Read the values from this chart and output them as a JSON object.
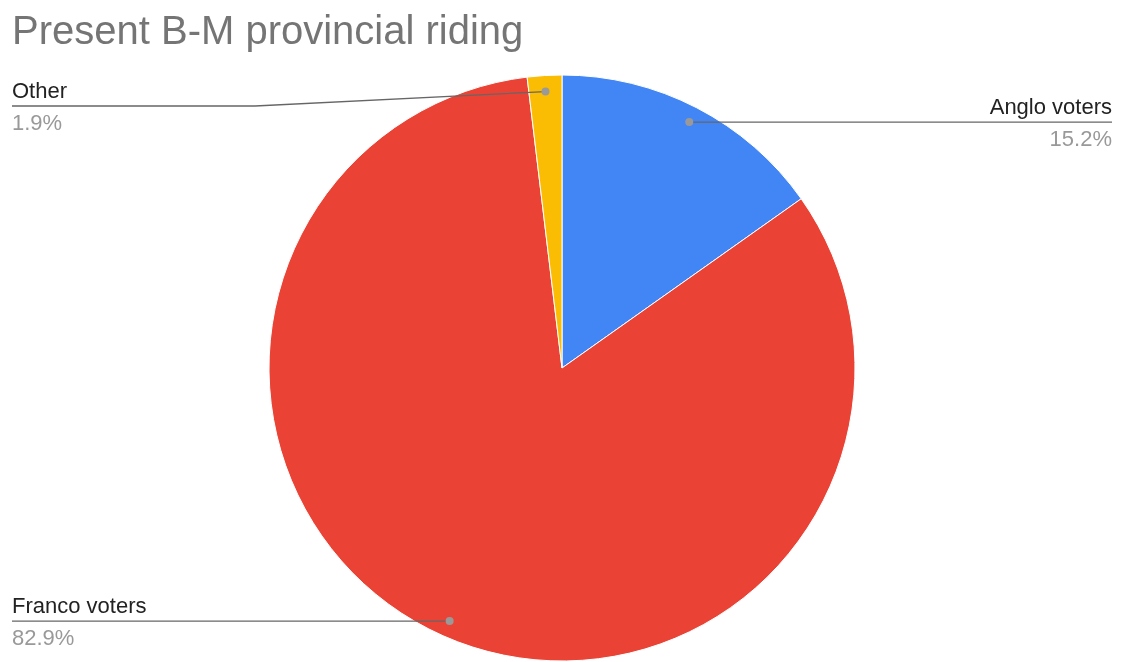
{
  "chart_data": {
    "type": "pie",
    "title": "Present B-M provincial riding",
    "categories": [
      "Anglo voters",
      "Franco voters",
      "Other"
    ],
    "values": [
      15.2,
      82.9,
      1.9
    ],
    "colors": [
      "#4285f4",
      "#ea4335",
      "#fbbc04"
    ],
    "value_labels": [
      "15.2%",
      "82.9%",
      "1.9%"
    ],
    "legend": false
  }
}
